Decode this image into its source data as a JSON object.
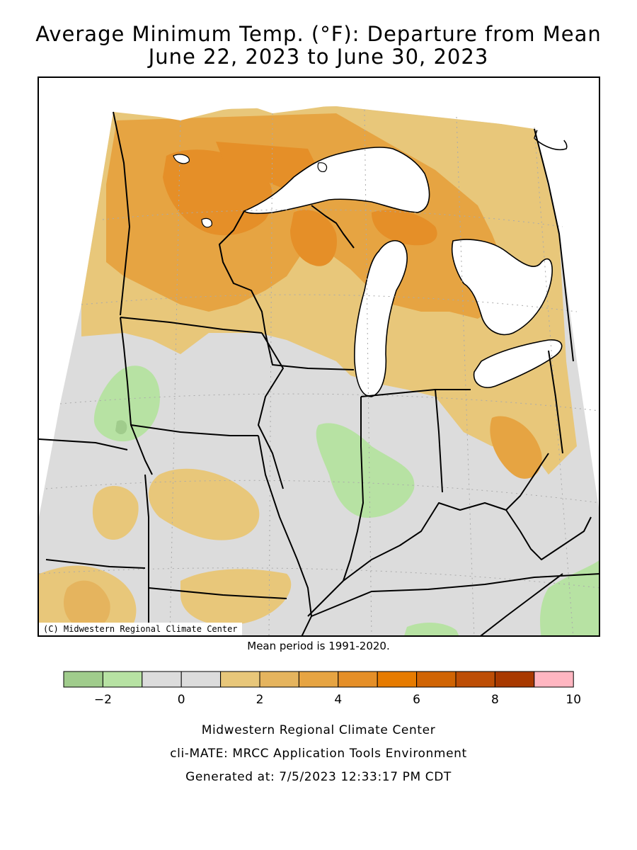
{
  "title": {
    "line1": "Average Minimum Temp. (°F): Departure from Mean",
    "line2": "June 22, 2023 to June 30, 2023"
  },
  "map": {
    "copyright": "(C) Midwestern Regional Climate Center",
    "mean_period": "Mean period is 1991-2020."
  },
  "legend": {
    "bins": [
      {
        "min": -3,
        "max": -2,
        "color": "#a0cc8c"
      },
      {
        "min": -2,
        "max": -1,
        "color": "#b7e2a3"
      },
      {
        "min": -1,
        "max": 0,
        "color": "#dcdcdc"
      },
      {
        "min": 0,
        "max": 1,
        "color": "#dcdcdc"
      },
      {
        "min": 1,
        "max": 2,
        "color": "#e8c77a"
      },
      {
        "min": 2,
        "max": 3,
        "color": "#e5b45e"
      },
      {
        "min": 3,
        "max": 4,
        "color": "#e6a442"
      },
      {
        "min": 4,
        "max": 5,
        "color": "#e58f28"
      },
      {
        "min": 5,
        "max": 6,
        "color": "#e67b00"
      },
      {
        "min": 6,
        "max": 7,
        "color": "#d06404"
      },
      {
        "min": 7,
        "max": 8,
        "color": "#bd4e06"
      },
      {
        "min": 8,
        "max": 9,
        "color": "#a83900"
      },
      {
        "min": 9,
        "max": 10,
        "color": "#ffb6c1"
      }
    ],
    "tick_labels": [
      "−2",
      "0",
      "2",
      "4",
      "6",
      "8",
      "10"
    ]
  },
  "footer": {
    "line1": "Midwestern Regional Climate Center",
    "line2": "cli-MATE: MRCC Application Tools Environment",
    "line3": "Generated at: 7/5/2023 12:33:17 PM CDT"
  },
  "colors": {
    "background": "#ffffff",
    "water": "#ffffff",
    "borders": "#000000",
    "gridlines": "#aaaaaa"
  }
}
